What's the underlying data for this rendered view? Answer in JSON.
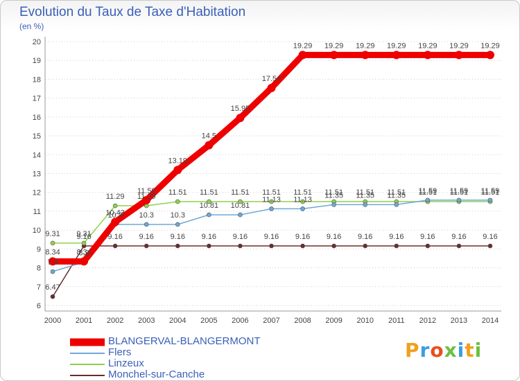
{
  "chart_data": {
    "type": "line",
    "title": "Evolution du Taux de Taxe d'Habitation",
    "subtitle": "(en %)",
    "xlabel": "",
    "ylabel": "",
    "x": [
      "2000",
      "2001",
      "2002",
      "2003",
      "2004",
      "2005",
      "2006",
      "2007",
      "2008",
      "2009",
      "2010",
      "2011",
      "2012",
      "2013",
      "2014"
    ],
    "ylim": [
      6,
      20
    ],
    "yticks": [
      6,
      7,
      8,
      9,
      10,
      11,
      12,
      13,
      14,
      15,
      16,
      17,
      18,
      19,
      20
    ],
    "series": [
      {
        "name": "Monchel-sur-Canche",
        "color": "#6b2b2b",
        "values": [
          6.47,
          9.16,
          9.16,
          9.16,
          9.16,
          9.16,
          9.16,
          9.16,
          9.16,
          9.16,
          9.16,
          9.16,
          9.16,
          9.16,
          9.16
        ],
        "labels": [
          "6.47",
          "9.16",
          "9.16",
          "9.16",
          "9.16",
          "9.16",
          "9.16",
          "9.16",
          "9.16",
          "9.16",
          "9.16",
          "9.16",
          "9.16",
          "9.16",
          "9.16"
        ]
      },
      {
        "name": "Linzeux",
        "color": "#8fd14f",
        "values": [
          9.31,
          9.31,
          11.29,
          11.29,
          11.51,
          11.51,
          11.51,
          11.51,
          11.51,
          11.51,
          11.51,
          11.51,
          11.51,
          11.51,
          11.51
        ],
        "labels": [
          "9.31",
          "9.31",
          "11.29",
          "11.29",
          "11.51",
          "11.51",
          "11.51",
          "11.51",
          "11.51",
          "11.51",
          "11.51",
          "11.51",
          "11.51",
          "11.51",
          "11.51"
        ]
      },
      {
        "name": "Flers",
        "color": "#6ea8d8",
        "values": [
          7.8,
          8.3,
          10.3,
          10.3,
          10.3,
          10.81,
          10.81,
          11.13,
          11.13,
          11.35,
          11.35,
          11.35,
          11.59,
          11.59,
          11.59
        ],
        "labels": [
          "7.8",
          "8.3",
          "10.3",
          "10.3",
          "10.3",
          "10.81",
          "10.81",
          "11.13",
          "11.13",
          "11.35",
          "11.35",
          "11.35",
          "11.59",
          "11.59",
          "11.59"
        ]
      },
      {
        "name": "BLANGERVAL-BLANGERMONT",
        "color": "#ee0000",
        "values": [
          8.34,
          8.34,
          10.43,
          11.59,
          13.19,
          14.5,
          15.95,
          17.54,
          19.29,
          19.29,
          19.29,
          19.29,
          19.29,
          19.29,
          19.29
        ],
        "labels": [
          "8.34",
          "8.34",
          "10.43",
          "11.59",
          "13.19",
          "14.5",
          "15.95",
          "17.54",
          "19.29",
          "19.29",
          "19.29",
          "19.29",
          "19.29",
          "19.29",
          "19.29"
        ]
      }
    ],
    "legend": [
      "BLANGERVAL-BLANGERMONT",
      "Flers",
      "Linzeux",
      "Monchel-sur-Canche"
    ],
    "legend_position": "bottom-left"
  },
  "logo": {
    "text": "Proxiti"
  }
}
